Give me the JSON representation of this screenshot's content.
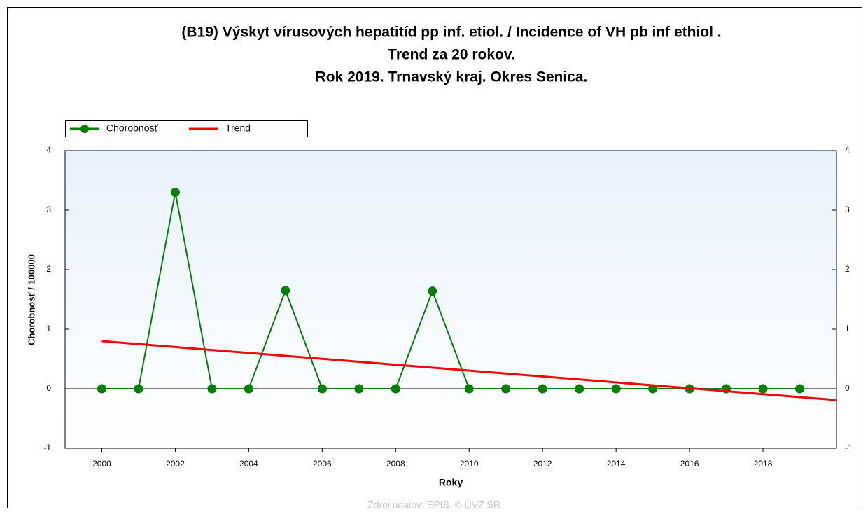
{
  "chart_data": {
    "type": "line",
    "title": [
      "(B19) Výskyt vírusových hepatitíd pp inf. etiol. / Incidence of VH pb inf ethiol .",
      "Trend za 20 rokov.",
      "Rok 2019. Trnavský kraj. Okres Senica."
    ],
    "x_label": "Roky",
    "y_label": "Chorobnosť / 100000",
    "source": "Zdroj údajov: EPIS, © ÚVZ SR",
    "x": [
      2000,
      2001,
      2002,
      2003,
      2004,
      2005,
      2006,
      2007,
      2008,
      2009,
      2010,
      2011,
      2012,
      2013,
      2014,
      2015,
      2016,
      2017,
      2018,
      2019
    ],
    "series": [
      {
        "name": "Chorobnosť",
        "color": "#008000",
        "values": [
          0,
          0,
          3.3,
          0,
          0,
          1.65,
          0,
          0,
          0,
          1.64,
          0,
          0,
          0,
          0,
          0,
          0,
          0,
          0,
          0,
          0
        ]
      },
      {
        "name": "Trend",
        "color": "#ff0000",
        "x": [
          2000,
          2020
        ],
        "values": [
          0.8,
          -0.19
        ]
      }
    ],
    "xlim": [
      1999,
      2020
    ],
    "xticks": [
      2000,
      2002,
      2004,
      2006,
      2008,
      2010,
      2012,
      2014,
      2016,
      2018
    ],
    "ylim": [
      -1,
      4
    ],
    "yticks": [
      -1,
      0,
      1,
      2,
      3,
      4
    ],
    "y2lim": [
      -1,
      4
    ],
    "y2ticks": [
      -1,
      0,
      1,
      2,
      3,
      4
    ],
    "legend": "top-left"
  }
}
